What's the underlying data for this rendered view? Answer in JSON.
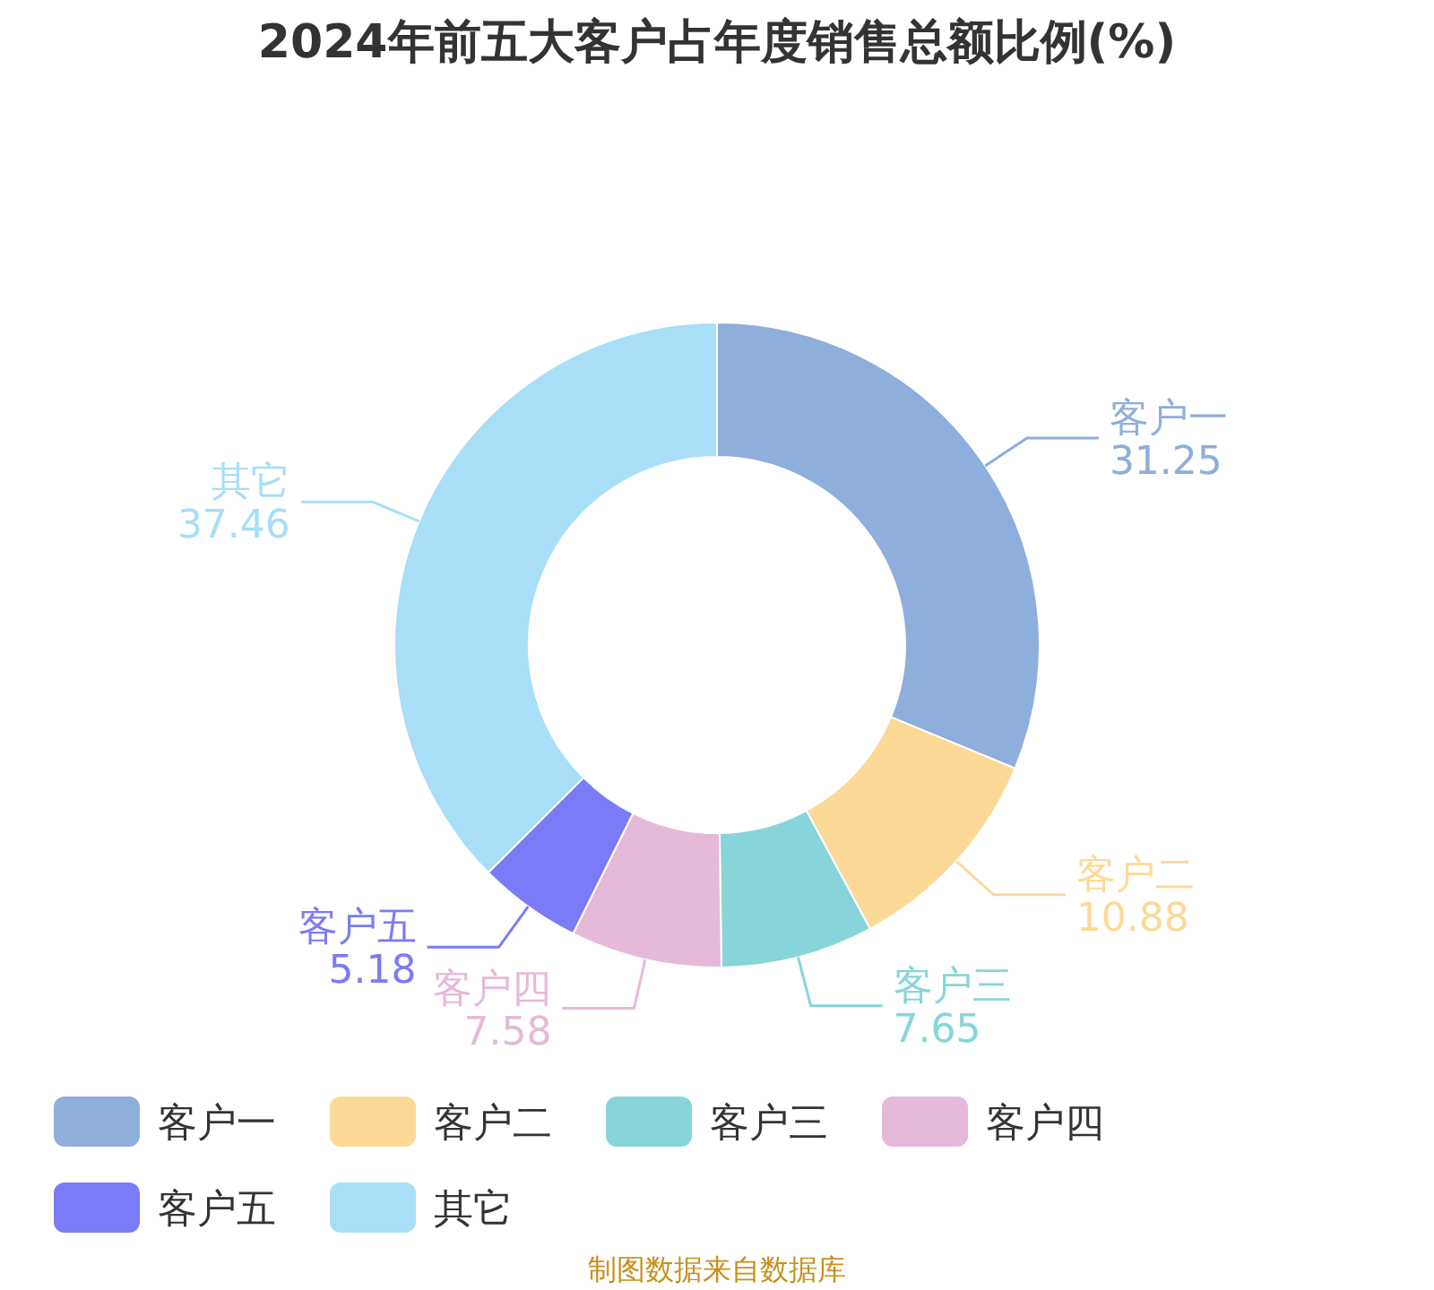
{
  "chart_data": {
    "type": "donut",
    "title": "2024年前五大客户占年度销售总额比例(%)",
    "categories": [
      "客户一",
      "客户二",
      "客户三",
      "客户四",
      "客户五",
      "其它"
    ],
    "values": [
      31.25,
      10.88,
      7.65,
      7.58,
      5.18,
      37.46
    ],
    "colors": [
      "#8eaedc",
      "#fdd998",
      "#87d5d8",
      "#e6b9d8",
      "#7b7bf7",
      "#a8def8"
    ],
    "data_labels": true,
    "legend": "bottom",
    "annotations": [
      "制图数据来自数据库"
    ]
  }
}
